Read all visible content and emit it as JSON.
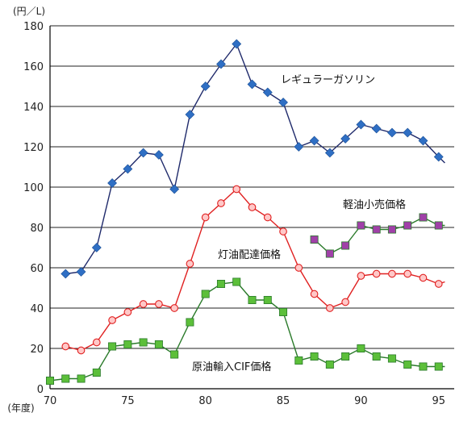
{
  "chart_data": {
    "type": "line",
    "y_unit_label": "(円／L)",
    "x_unit_label": "(年度)",
    "xlim": [
      70,
      96
    ],
    "ylim": [
      0,
      180
    ],
    "x_ticks": [
      70,
      75,
      80,
      85,
      90,
      95
    ],
    "y_ticks": [
      0,
      20,
      40,
      60,
      80,
      100,
      120,
      140,
      160,
      180
    ],
    "grid": "horizontal",
    "series": [
      {
        "name": "レギュラーガソリン",
        "color": "#1f2a6b",
        "marker_color": "#2f6fc4",
        "marker": "diamond",
        "x": [
          71,
          72,
          73,
          74,
          75,
          76,
          77,
          78,
          79,
          80,
          81,
          82,
          83,
          84,
          85,
          86,
          87,
          88,
          89,
          90,
          91,
          92,
          93,
          94,
          95,
          95.4
        ],
        "y": [
          57,
          58,
          70,
          102,
          109,
          117,
          116,
          99,
          136,
          150,
          161,
          171,
          151,
          147,
          142,
          120,
          123,
          117,
          124,
          131,
          129,
          127,
          127,
          123,
          115,
          112
        ]
      },
      {
        "name": "軽油小売価格",
        "color": "#2a7a2a",
        "marker_color": "#a040a8",
        "marker": "square",
        "x": [
          87,
          88,
          89,
          90,
          91,
          92,
          93,
          94,
          95,
          95.4
        ],
        "y": [
          74,
          67,
          71,
          81,
          79,
          79,
          81,
          85,
          81,
          81
        ]
      },
      {
        "name": "灯油配達価格",
        "color": "#e02020",
        "marker_color": "#ffc8c8",
        "marker": "circle",
        "x": [
          71,
          72,
          73,
          74,
          75,
          76,
          77,
          78,
          79,
          80,
          81,
          82,
          83,
          84,
          85,
          86,
          87,
          88,
          89,
          90,
          91,
          92,
          93,
          94,
          95,
          95.4
        ],
        "y": [
          21,
          19,
          23,
          34,
          38,
          42,
          42,
          40,
          62,
          85,
          92,
          99,
          90,
          85,
          78,
          60,
          47,
          40,
          43,
          56,
          57,
          57,
          57,
          55,
          52,
          53
        ]
      },
      {
        "name": "原油輸入CIF価格",
        "color": "#2a7a2a",
        "marker_color": "#5cbf3a",
        "marker": "square",
        "x": [
          70,
          71,
          72,
          73,
          74,
          75,
          76,
          77,
          78,
          79,
          80,
          81,
          82,
          83,
          84,
          85,
          86,
          87,
          88,
          89,
          90,
          91,
          92,
          93,
          94,
          95,
          95.4
        ],
        "y": [
          4,
          5,
          5,
          8,
          21,
          22,
          23,
          22,
          17,
          33,
          47,
          52,
          53,
          44,
          44,
          38,
          14,
          16,
          12,
          16,
          20,
          16,
          15,
          12,
          11,
          11,
          11
        ]
      }
    ]
  }
}
